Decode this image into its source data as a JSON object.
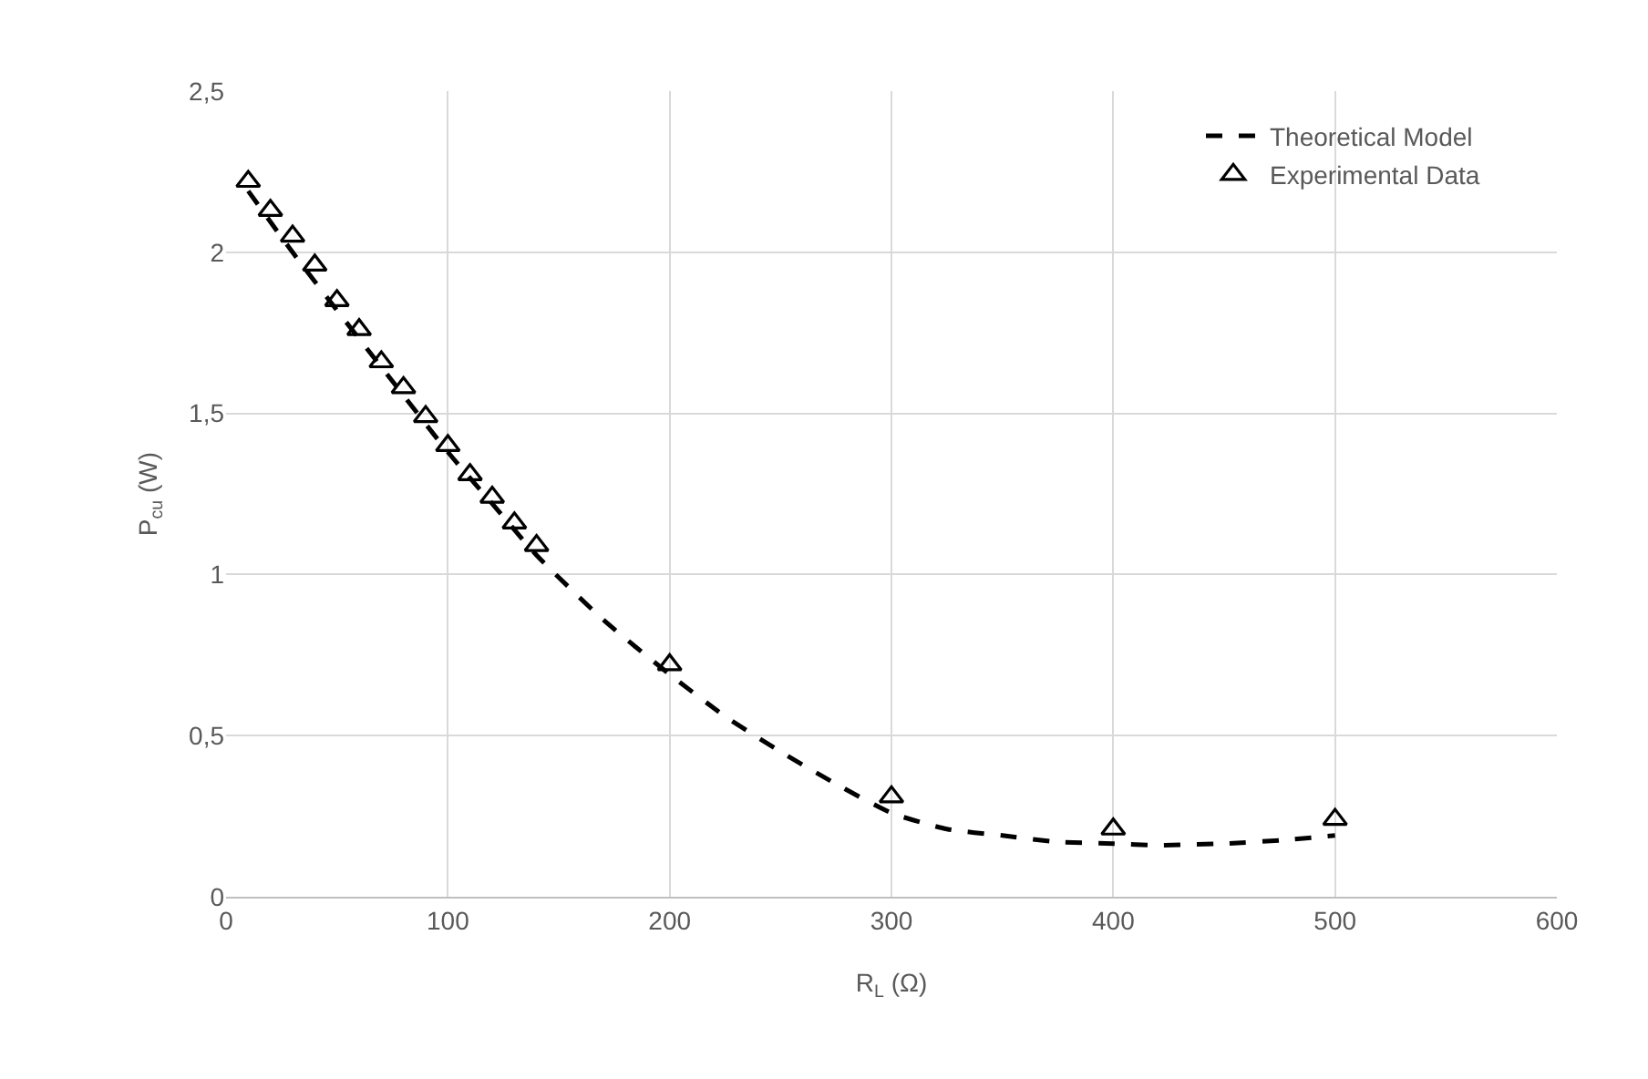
{
  "chart_data": {
    "type": "scatter",
    "xlabel": "R$_{L}$ (Ω)",
    "ylabel": "P$_{cu}$ (W)",
    "xlim": [
      0,
      600
    ],
    "xticks": [
      0,
      100,
      200,
      300,
      400,
      500,
      600
    ],
    "ylim": [
      0,
      2.5
    ],
    "yticks": [
      0,
      {
        "value": 0.5,
        "label": "0,5"
      },
      1,
      {
        "value": 1.5,
        "label": "1,5"
      },
      2,
      {
        "value": 2.5,
        "label": "2,5"
      }
    ],
    "grid": true,
    "legend": "top right",
    "series": [
      {
        "name": "Theoretical Model",
        "type": "line",
        "line_style": "dashed",
        "marker": "none",
        "color": "#000000",
        "x": [
          10,
          30,
          50,
          75,
          100,
          120,
          140,
          170,
          200,
          225,
          250,
          275,
          300,
          325,
          350,
          375,
          400,
          420,
          450,
          475,
          500
        ],
        "values": [
          2.19,
          2.0,
          1.82,
          1.6,
          1.38,
          1.22,
          1.06,
          0.86,
          0.69,
          0.56,
          0.45,
          0.35,
          0.26,
          0.21,
          0.19,
          0.17,
          0.165,
          0.16,
          0.165,
          0.175,
          0.19
        ]
      },
      {
        "name": "Experimental Data",
        "type": "scatter",
        "marker": "triangle",
        "color": "#000000",
        "x": [
          10,
          20,
          30,
          40,
          50,
          60,
          70,
          80,
          90,
          100,
          110,
          120,
          130,
          140,
          200,
          300,
          400,
          500
        ],
        "values": [
          2.22,
          2.13,
          2.05,
          1.96,
          1.85,
          1.76,
          1.66,
          1.58,
          1.49,
          1.4,
          1.31,
          1.24,
          1.16,
          1.09,
          0.72,
          0.31,
          0.21,
          0.24
        ]
      }
    ]
  }
}
